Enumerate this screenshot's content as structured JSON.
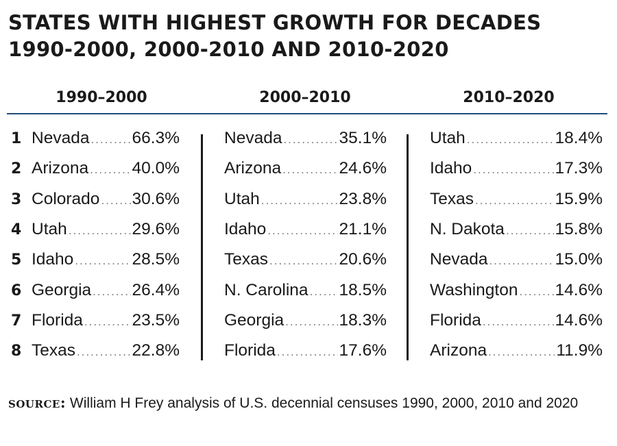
{
  "title_line1": "STATES WITH HIGHEST GROWTH FOR DECADES",
  "title_line2": "1990-2000, 2000-2010 AND 2010-2020",
  "source_label": "SOURCE:",
  "source_text": "William H Frey analysis of U.S. decennial censuses 1990, 2000, 2010 and 2020",
  "colors": {
    "rule": "#1d4f78",
    "text": "#1a1a1a",
    "dots": "#777777"
  },
  "chart_data": {
    "type": "table",
    "ranks": [
      "1",
      "2",
      "3",
      "4",
      "5",
      "6",
      "7",
      "8"
    ],
    "columns": [
      {
        "header": "1990–2000",
        "rows": [
          {
            "state": "Nevada",
            "value": "66.3%"
          },
          {
            "state": "Arizona",
            "value": "40.0%"
          },
          {
            "state": "Colorado",
            "value": "30.6%"
          },
          {
            "state": "Utah",
            "value": "29.6%"
          },
          {
            "state": "Idaho",
            "value": "28.5%"
          },
          {
            "state": "Georgia",
            "value": "26.4%"
          },
          {
            "state": "Florida",
            "value": "23.5%"
          },
          {
            "state": "Texas",
            "value": "22.8%"
          }
        ]
      },
      {
        "header": "2000–2010",
        "rows": [
          {
            "state": "Nevada",
            "value": "35.1%"
          },
          {
            "state": "Arizona",
            "value": "24.6%"
          },
          {
            "state": "Utah",
            "value": "23.8%"
          },
          {
            "state": "Idaho",
            "value": "21.1%"
          },
          {
            "state": "Texas",
            "value": "20.6%"
          },
          {
            "state": "N. Carolina",
            "value": "18.5%"
          },
          {
            "state": "Georgia",
            "value": "18.3%"
          },
          {
            "state": "Florida",
            "value": "17.6%"
          }
        ]
      },
      {
        "header": "2010–2020",
        "rows": [
          {
            "state": "Utah",
            "value": "18.4%"
          },
          {
            "state": "Idaho",
            "value": "17.3%"
          },
          {
            "state": "Texas",
            "value": "15.9%"
          },
          {
            "state": "N. Dakota",
            "value": "15.8%"
          },
          {
            "state": "Nevada",
            "value": "15.0%"
          },
          {
            "state": "Washington",
            "value": "14.6%"
          },
          {
            "state": "Florida",
            "value": "14.6%"
          },
          {
            "state": "Arizona",
            "value": "11.9%"
          }
        ]
      }
    ]
  }
}
